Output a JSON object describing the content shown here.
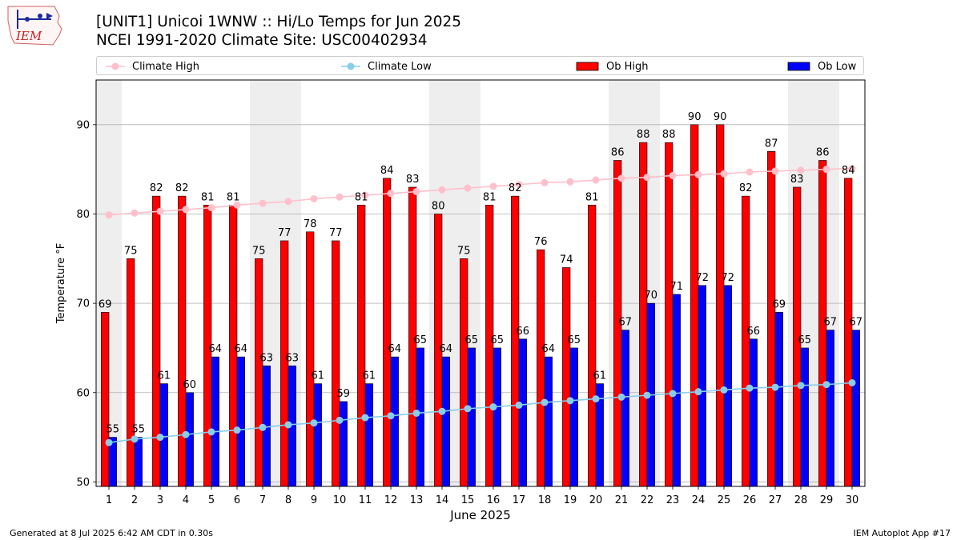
{
  "header": {
    "title_line1": "[UNIT1] Unicoi 1WNW :: Hi/Lo Temps for Jun 2025",
    "title_line2": "NCEI 1991-2020 Climate Site: USC00402934",
    "logo_text": "IEM"
  },
  "footer": {
    "generated": "Generated at 8 Jul 2025 6:42 AM CDT in 0.30s",
    "app": "IEM Autoplot App #17"
  },
  "colors": {
    "climate_high": "#ffc0cb",
    "climate_low": "#87ceeb",
    "ob_high": "#ff0000",
    "ob_low": "#0000ff",
    "weekend_shade": "#eeeeee",
    "grid": "#b0b0b0"
  },
  "chart_data": {
    "type": "bar",
    "xlabel": "June 2025",
    "ylabel": "Temperature °F",
    "ylim": [
      49.5,
      95
    ],
    "yticks": [
      50,
      60,
      70,
      80,
      90
    ],
    "grid": "horizontal",
    "legend_position": "top",
    "categories": [
      "1",
      "2",
      "3",
      "4",
      "5",
      "6",
      "7",
      "8",
      "9",
      "10",
      "11",
      "12",
      "13",
      "14",
      "15",
      "16",
      "17",
      "18",
      "19",
      "20",
      "21",
      "22",
      "23",
      "24",
      "25",
      "26",
      "27",
      "28",
      "29",
      "30"
    ],
    "weekend_days": [
      1,
      7,
      8,
      14,
      15,
      21,
      22,
      28,
      29
    ],
    "series": [
      {
        "name": "Climate High",
        "type": "line",
        "values": [
          79.9,
          80.1,
          80.3,
          80.5,
          80.7,
          81.0,
          81.2,
          81.4,
          81.7,
          81.9,
          82.1,
          82.3,
          82.5,
          82.7,
          82.9,
          83.1,
          83.3,
          83.5,
          83.6,
          83.8,
          84.0,
          84.1,
          84.3,
          84.4,
          84.5,
          84.7,
          84.8,
          84.9,
          85.0,
          85.1
        ]
      },
      {
        "name": "Climate Low",
        "type": "line",
        "values": [
          54.4,
          54.8,
          55.0,
          55.3,
          55.6,
          55.8,
          56.1,
          56.4,
          56.6,
          56.9,
          57.2,
          57.4,
          57.7,
          57.9,
          58.2,
          58.4,
          58.6,
          58.9,
          59.1,
          59.3,
          59.5,
          59.7,
          59.9,
          60.1,
          60.3,
          60.5,
          60.6,
          60.8,
          60.9,
          61.1
        ]
      },
      {
        "name": "Ob High",
        "type": "bar",
        "values": [
          69,
          75,
          82,
          82,
          81,
          81,
          75,
          77,
          78,
          77,
          81,
          84,
          83,
          80,
          75,
          81,
          82,
          76,
          74,
          81,
          86,
          88,
          88,
          90,
          90,
          82,
          87,
          83,
          86,
          84
        ]
      },
      {
        "name": "Ob Low",
        "type": "bar",
        "values": [
          55,
          55,
          61,
          60,
          64,
          64,
          63,
          63,
          61,
          59,
          61,
          64,
          65,
          64,
          65,
          65,
          66,
          64,
          65,
          61,
          67,
          70,
          71,
          72,
          72,
          66,
          69,
          65,
          67,
          67
        ]
      }
    ]
  }
}
